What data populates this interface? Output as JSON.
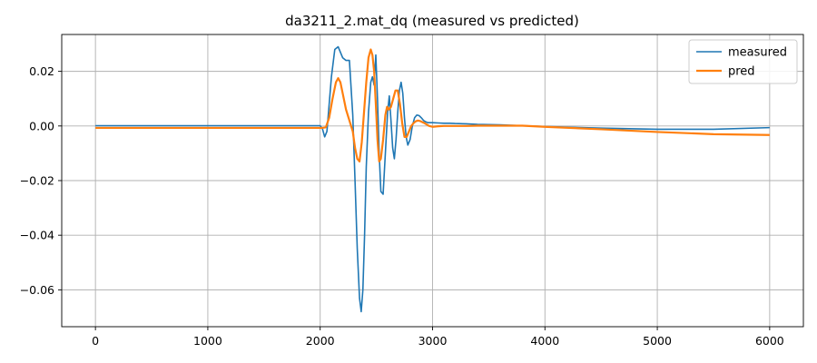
{
  "chart_data": {
    "type": "line",
    "title": "da3211_2.mat_dq  (measured vs predicted)",
    "xlabel": "",
    "ylabel": "",
    "xlim": [
      -300,
      6300
    ],
    "ylim": [
      -0.0735,
      0.0335
    ],
    "xticks": [
      0,
      1000,
      2000,
      3000,
      4000,
      5000,
      6000
    ],
    "xtick_labels": [
      "0",
      "1000",
      "2000",
      "3000",
      "4000",
      "5000",
      "6000"
    ],
    "yticks": [
      0.02,
      0.0,
      -0.02,
      -0.04,
      -0.06
    ],
    "ytick_labels": [
      "0.02",
      "0.00",
      "−0.02",
      "−0.04",
      "−0.06"
    ],
    "grid": true,
    "legend_position": "top-right",
    "series": [
      {
        "name": "measured",
        "color": "#1f77b4",
        "x": [
          0,
          500,
          1000,
          1500,
          2000,
          2020,
          2040,
          2060,
          2080,
          2100,
          2130,
          2160,
          2180,
          2200,
          2230,
          2260,
          2290,
          2310,
          2330,
          2350,
          2365,
          2380,
          2395,
          2410,
          2430,
          2450,
          2465,
          2480,
          2495,
          2510,
          2525,
          2540,
          2560,
          2580,
          2600,
          2615,
          2630,
          2645,
          2660,
          2675,
          2690,
          2705,
          2720,
          2735,
          2750,
          2765,
          2780,
          2800,
          2820,
          2840,
          2860,
          2880,
          2900,
          2920,
          2940,
          2960,
          2980,
          3000,
          3050,
          3100,
          3150,
          3200,
          3300,
          3400,
          3600,
          3800,
          4000,
          4500,
          5000,
          5500,
          6000
        ],
        "y": [
          0.0001,
          0.0001,
          0.0001,
          0.0001,
          0.0001,
          -0.001,
          -0.004,
          -0.002,
          0.008,
          0.018,
          0.028,
          0.029,
          0.027,
          0.025,
          0.024,
          0.024,
          0.004,
          -0.02,
          -0.045,
          -0.063,
          -0.068,
          -0.06,
          -0.04,
          -0.015,
          0.005,
          0.016,
          0.018,
          0.015,
          0.026,
          0.01,
          -0.01,
          -0.024,
          -0.025,
          -0.01,
          0.005,
          0.011,
          0.002,
          -0.008,
          -0.012,
          -0.005,
          0.005,
          0.013,
          0.016,
          0.012,
          0.003,
          -0.004,
          -0.007,
          -0.005,
          0.0,
          0.003,
          0.004,
          0.0038,
          0.003,
          0.002,
          0.0015,
          0.0012,
          0.0012,
          0.0012,
          0.0011,
          0.001,
          0.001,
          0.0009,
          0.0008,
          0.0006,
          0.0004,
          0.0001,
          -0.0002,
          -0.0008,
          -0.0012,
          -0.0012,
          -0.0006
        ]
      },
      {
        "name": "pred",
        "color": "#ff7f0e",
        "x": [
          0,
          500,
          1000,
          1500,
          2000,
          2020,
          2050,
          2080,
          2110,
          2140,
          2160,
          2180,
          2200,
          2230,
          2260,
          2290,
          2310,
          2330,
          2350,
          2370,
          2390,
          2410,
          2430,
          2450,
          2465,
          2480,
          2495,
          2510,
          2525,
          2540,
          2560,
          2580,
          2595,
          2610,
          2630,
          2650,
          2670,
          2690,
          2710,
          2730,
          2750,
          2770,
          2790,
          2810,
          2830,
          2850,
          2870,
          2890,
          2910,
          2930,
          2950,
          2970,
          3000,
          3050,
          3100,
          3200,
          3300,
          3400,
          3600,
          3800,
          4000,
          4500,
          5000,
          5500,
          6000
        ],
        "y": [
          -0.0007,
          -0.0007,
          -0.0007,
          -0.0007,
          -0.0007,
          -0.0007,
          -0.0005,
          0.003,
          0.01,
          0.016,
          0.0175,
          0.016,
          0.012,
          0.006,
          0.002,
          -0.002,
          -0.008,
          -0.012,
          -0.013,
          -0.006,
          0.005,
          0.016,
          0.025,
          0.028,
          0.026,
          0.02,
          0.008,
          -0.005,
          -0.013,
          -0.012,
          -0.005,
          0.004,
          0.007,
          0.006,
          0.007,
          0.01,
          0.013,
          0.013,
          0.008,
          0.001,
          -0.004,
          -0.004,
          -0.002,
          0.0,
          0.001,
          0.0017,
          0.002,
          0.0018,
          0.0014,
          0.001,
          0.0005,
          0.0,
          -0.0003,
          -0.0001,
          0.0,
          0.0,
          0.0,
          0.0001,
          0.0001,
          0.0001,
          -0.0003,
          -0.0012,
          -0.0022,
          -0.003,
          -0.0033
        ]
      }
    ]
  }
}
